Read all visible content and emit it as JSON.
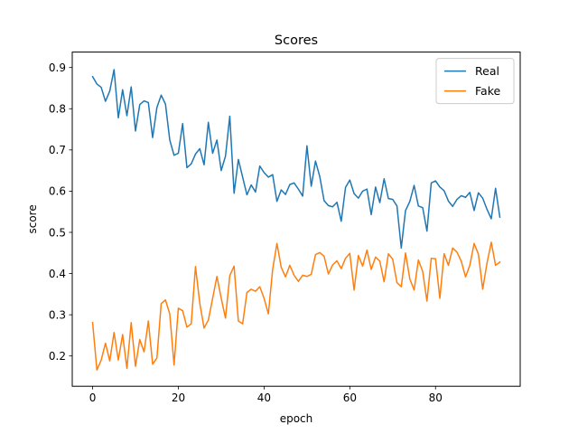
{
  "chart_data": {
    "type": "line",
    "title": "Scores",
    "xlabel": "epoch",
    "ylabel": "score",
    "xlim": [
      -4.75,
      99.75
    ],
    "ylim": [
      0.1265,
      0.9375
    ],
    "xticks": [
      0,
      20,
      40,
      60,
      80
    ],
    "yticks": [
      0.2,
      0.3,
      0.4,
      0.5,
      0.6,
      0.7,
      0.8,
      0.9
    ],
    "grid": false,
    "legend_position": "top-right",
    "series": [
      {
        "name": "Real",
        "color": "#1f77b4",
        "values": [
          0.878,
          0.86,
          0.852,
          0.818,
          0.843,
          0.895,
          0.778,
          0.846,
          0.783,
          0.853,
          0.746,
          0.81,
          0.819,
          0.815,
          0.73,
          0.803,
          0.833,
          0.811,
          0.724,
          0.687,
          0.692,
          0.764,
          0.657,
          0.666,
          0.69,
          0.703,
          0.664,
          0.767,
          0.692,
          0.724,
          0.65,
          0.685,
          0.782,
          0.595,
          0.677,
          0.634,
          0.591,
          0.615,
          0.598,
          0.661,
          0.645,
          0.634,
          0.64,
          0.575,
          0.603,
          0.592,
          0.616,
          0.62,
          0.605,
          0.588,
          0.71,
          0.612,
          0.673,
          0.635,
          0.577,
          0.565,
          0.562,
          0.573,
          0.527,
          0.609,
          0.627,
          0.594,
          0.583,
          0.6,
          0.605,
          0.543,
          0.61,
          0.572,
          0.63,
          0.582,
          0.58,
          0.564,
          0.462,
          0.553,
          0.575,
          0.614,
          0.564,
          0.56,
          0.503,
          0.62,
          0.625,
          0.61,
          0.601,
          0.576,
          0.563,
          0.58,
          0.589,
          0.585,
          0.597,
          0.553,
          0.596,
          0.583,
          0.556,
          0.533,
          0.607,
          0.537
        ]
      },
      {
        "name": "Fake",
        "color": "#ff7f0e",
        "values": [
          0.281,
          0.166,
          0.19,
          0.231,
          0.188,
          0.257,
          0.19,
          0.252,
          0.17,
          0.281,
          0.175,
          0.24,
          0.21,
          0.285,
          0.18,
          0.195,
          0.327,
          0.336,
          0.302,
          0.178,
          0.316,
          0.31,
          0.27,
          0.278,
          0.417,
          0.328,
          0.268,
          0.287,
          0.34,
          0.393,
          0.34,
          0.292,
          0.395,
          0.418,
          0.285,
          0.278,
          0.354,
          0.362,
          0.357,
          0.368,
          0.34,
          0.302,
          0.41,
          0.473,
          0.415,
          0.392,
          0.42,
          0.396,
          0.381,
          0.396,
          0.393,
          0.398,
          0.446,
          0.451,
          0.442,
          0.399,
          0.421,
          0.431,
          0.412,
          0.437,
          0.449,
          0.36,
          0.444,
          0.418,
          0.457,
          0.41,
          0.44,
          0.43,
          0.38,
          0.448,
          0.435,
          0.378,
          0.368,
          0.45,
          0.387,
          0.36,
          0.433,
          0.405,
          0.333,
          0.437,
          0.436,
          0.34,
          0.448,
          0.42,
          0.462,
          0.452,
          0.43,
          0.392,
          0.42,
          0.473,
          0.447,
          0.362,
          0.425,
          0.476,
          0.42,
          0.428
        ]
      }
    ]
  }
}
